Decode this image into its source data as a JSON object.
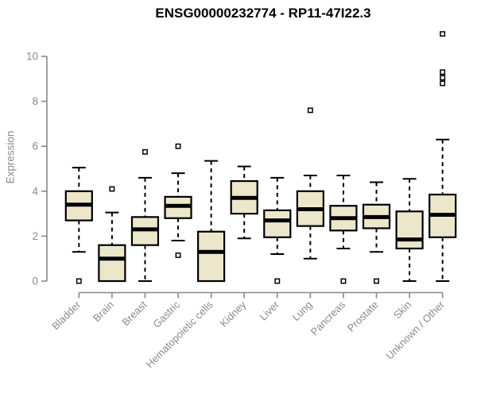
{
  "chart_data": {
    "type": "boxplot",
    "title": "ENSG00000232774 - RP11-47I22.3",
    "ylabel": "Expression",
    "xlabel": "",
    "ylim": [
      0,
      10
    ],
    "yticks": [
      0,
      2,
      4,
      6,
      8,
      10
    ],
    "grid": false,
    "legend": "none",
    "categories": [
      "Bladder",
      "Brain",
      "Breast",
      "Gastric",
      "Hematopoietic cells",
      "Kidney",
      "Liver",
      "Lung",
      "Pancreas",
      "Prostate",
      "Skin",
      "Unknown / Other"
    ],
    "series": [
      {
        "label": "Bladder",
        "whisker_low": 1.3,
        "q1": 2.7,
        "median": 3.4,
        "q3": 4.0,
        "whisker_high": 5.05,
        "outliers": [
          0.0
        ]
      },
      {
        "label": "Brain",
        "whisker_low": 0.0,
        "q1": 0.0,
        "median": 1.0,
        "q3": 1.6,
        "whisker_high": 3.05,
        "outliers": [
          4.1
        ]
      },
      {
        "label": "Breast",
        "whisker_low": 0.0,
        "q1": 1.6,
        "median": 2.3,
        "q3": 2.85,
        "whisker_high": 4.6,
        "outliers": [
          5.75
        ]
      },
      {
        "label": "Gastric",
        "whisker_low": 1.8,
        "q1": 2.8,
        "median": 3.35,
        "q3": 3.75,
        "whisker_high": 4.8,
        "outliers": [
          6.0,
          1.15
        ]
      },
      {
        "label": "Hematopoietic cells",
        "whisker_low": 0.0,
        "q1": 0.0,
        "median": 1.3,
        "q3": 2.2,
        "whisker_high": 5.35,
        "outliers": []
      },
      {
        "label": "Kidney",
        "whisker_low": 1.9,
        "q1": 3.0,
        "median": 3.7,
        "q3": 4.45,
        "whisker_high": 5.1,
        "outliers": []
      },
      {
        "label": "Liver",
        "whisker_low": 1.2,
        "q1": 1.95,
        "median": 2.7,
        "q3": 3.15,
        "whisker_high": 4.6,
        "outliers": [
          0.0
        ]
      },
      {
        "label": "Lung",
        "whisker_low": 1.0,
        "q1": 2.45,
        "median": 3.2,
        "q3": 4.0,
        "whisker_high": 4.7,
        "outliers": [
          7.6
        ]
      },
      {
        "label": "Pancreas",
        "whisker_low": 1.45,
        "q1": 2.25,
        "median": 2.8,
        "q3": 3.35,
        "whisker_high": 4.7,
        "outliers": [
          0.0
        ]
      },
      {
        "label": "Prostate",
        "whisker_low": 1.3,
        "q1": 2.35,
        "median": 2.85,
        "q3": 3.4,
        "whisker_high": 4.4,
        "outliers": [
          0.0
        ]
      },
      {
        "label": "Skin",
        "whisker_low": 0.0,
        "q1": 1.45,
        "median": 1.85,
        "q3": 3.1,
        "whisker_high": 4.55,
        "outliers": []
      },
      {
        "label": "Unknown / Other",
        "whisker_low": 0.0,
        "q1": 1.95,
        "median": 2.95,
        "q3": 3.85,
        "whisker_high": 6.3,
        "outliers": [
          11.0,
          9.3,
          9.05,
          8.8
        ]
      }
    ],
    "colors": {
      "box_fill": "#ECE7CB",
      "box_border": "#000000",
      "median": "#000000",
      "whisker": "#000000",
      "outlier_border": "#000000",
      "outlier_fill": "#ffffff",
      "axis": "#888888",
      "tick_label": "#8a8a8a",
      "title_text": "#000000",
      "background": "#ffffff"
    }
  }
}
